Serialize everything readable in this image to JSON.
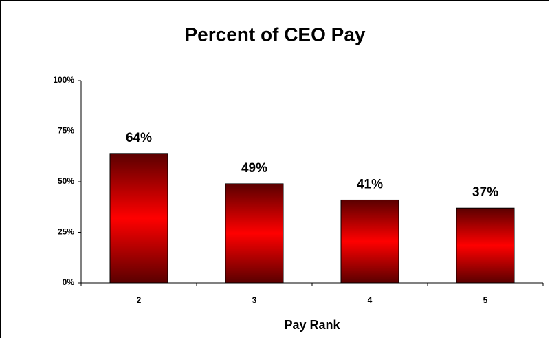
{
  "chart_data": {
    "type": "bar",
    "title": "Percent of CEO Pay",
    "x_label": "Pay Rank",
    "categories": [
      "2",
      "3",
      "4",
      "5"
    ],
    "values": [
      64,
      49,
      41,
      37
    ],
    "value_labels": [
      "64%",
      "49%",
      "41%",
      "37%"
    ],
    "color": "#ff0000",
    "ylim": [
      0,
      100
    ],
    "yticks": [
      {
        "value": 0,
        "label": "0%"
      },
      {
        "value": 25,
        "label": "25%"
      },
      {
        "value": 50,
        "label": "50%"
      },
      {
        "value": 75,
        "label": "75%"
      },
      {
        "value": 100,
        "label": "100%"
      }
    ],
    "grid": false
  }
}
